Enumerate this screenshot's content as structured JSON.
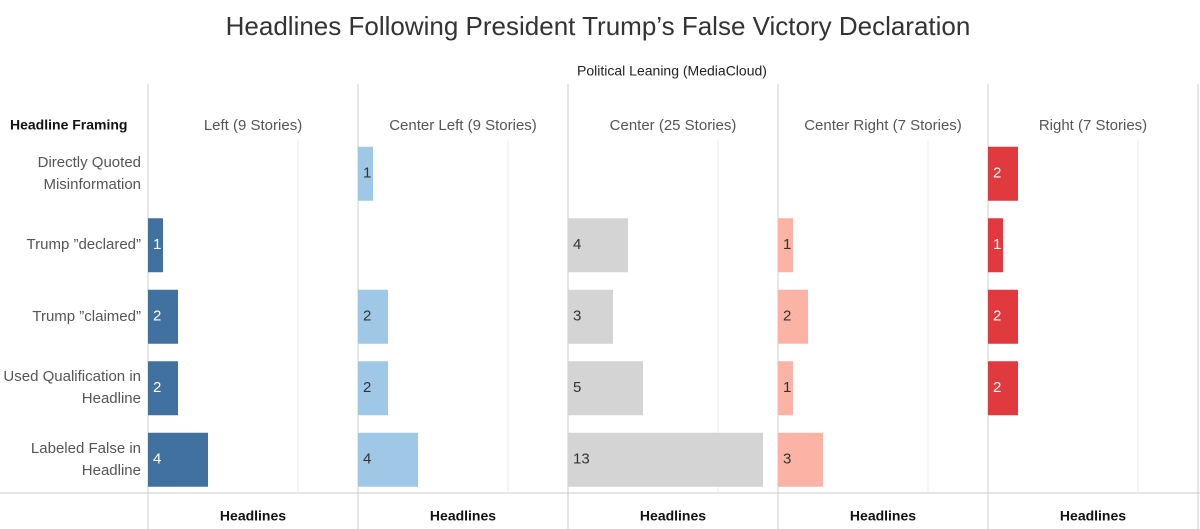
{
  "chart_data": {
    "type": "bar",
    "title": "Headlines Following President Trump’s False Victory Declaration",
    "column_axis_title": "Political Leaning (MediaCloud)",
    "row_axis_title": "Headline Framing",
    "x_label": "Headlines",
    "categories": [
      "Directly Quoted Misinformation",
      "Trump ”declared”",
      "Trump ”claimed”",
      "Used Qualification in Headline",
      "Labeled False in Headline"
    ],
    "series": [
      {
        "name": "Left (9 Stories)",
        "color": "#41719f",
        "values": [
          null,
          1,
          2,
          2,
          4
        ]
      },
      {
        "name": "Center Left (9 Stories)",
        "color": "#9fc8e6",
        "values": [
          1,
          null,
          2,
          2,
          4
        ]
      },
      {
        "name": "Center (25 Stories)",
        "color": "#d4d4d4",
        "values": [
          null,
          4,
          3,
          5,
          13
        ]
      },
      {
        "name": "Center Right (7 Stories)",
        "color": "#fbb3a6",
        "values": [
          null,
          1,
          2,
          1,
          3
        ]
      },
      {
        "name": "Right (7 Stories)",
        "color": "#e0393e",
        "values": [
          2,
          1,
          2,
          2,
          null
        ]
      }
    ],
    "xlim": [
      0,
      14
    ],
    "xticks": [
      0,
      10
    ],
    "grid": true
  }
}
